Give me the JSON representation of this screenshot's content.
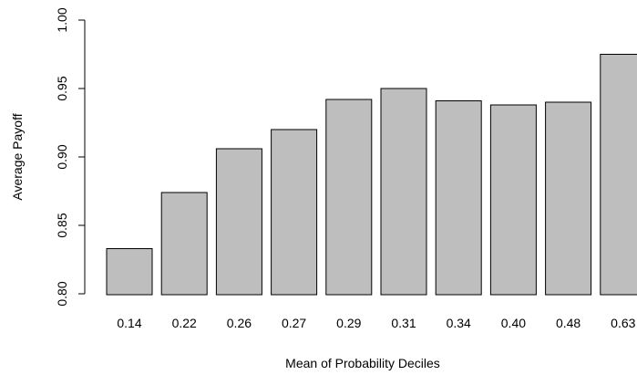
{
  "chart_data": {
    "type": "bar",
    "title": "",
    "xlabel": "Mean of Probability Deciles",
    "ylabel": "Average Payoff",
    "categories": [
      "0.14",
      "0.22",
      "0.26",
      "0.27",
      "0.29",
      "0.31",
      "0.34",
      "0.40",
      "0.48",
      "0.63"
    ],
    "values": [
      0.833,
      0.874,
      0.906,
      0.92,
      0.942,
      0.95,
      0.941,
      0.938,
      0.94,
      0.975
    ],
    "ylim": [
      0.8,
      1.0
    ],
    "y_ticks": [
      "0.80",
      "0.85",
      "0.90",
      "0.95",
      "1.00"
    ],
    "grid": false,
    "legend": "none",
    "bar_color": "#bebebe",
    "bar_border_color": "#000000"
  }
}
